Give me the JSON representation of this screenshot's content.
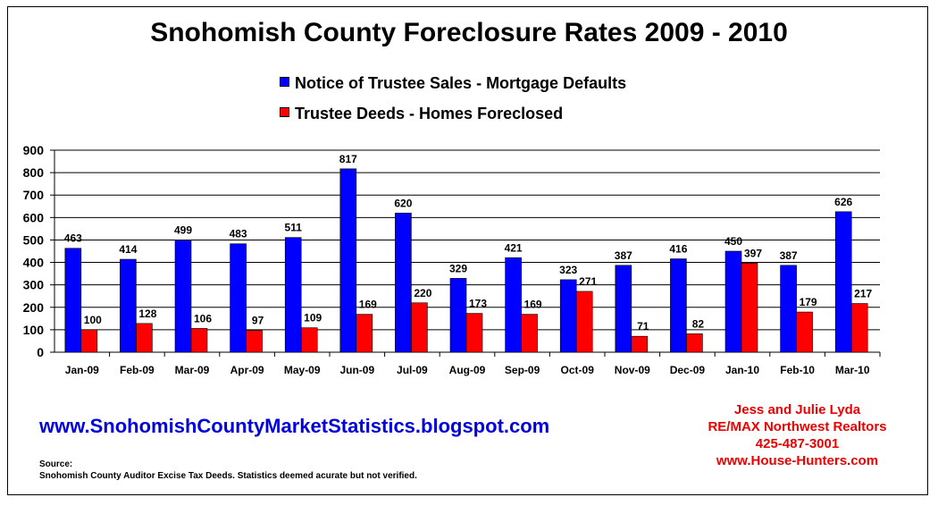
{
  "title": "Snohomish County Foreclosure Rates 2009 - 2010",
  "legend": [
    {
      "label": "Notice of Trustee Sales - Mortgage Defaults",
      "color": "#0000ff"
    },
    {
      "label": "Trustee Deeds - Homes Foreclosed",
      "color": "#ff0000"
    }
  ],
  "chart_data": {
    "type": "bar",
    "title": "Snohomish County Foreclosure Rates 2009 - 2010",
    "categories": [
      "Jan-09",
      "Feb-09",
      "Mar-09",
      "Apr-09",
      "May-09",
      "Jun-09",
      "Jul-09",
      "Aug-09",
      "Sep-09",
      "Oct-09",
      "Nov-09",
      "Dec-09",
      "Jan-10",
      "Feb-10",
      "Mar-10"
    ],
    "series": [
      {
        "name": "Notice of Trustee Sales - Mortgage Defaults",
        "color": "#0000ff",
        "values": [
          463,
          414,
          499,
          483,
          511,
          817,
          620,
          329,
          421,
          323,
          387,
          416,
          450,
          387,
          626
        ]
      },
      {
        "name": "Trustee Deeds - Homes Foreclosed",
        "color": "#ff0000",
        "values": [
          100,
          128,
          106,
          97,
          109,
          169,
          220,
          173,
          169,
          271,
          71,
          82,
          397,
          179,
          217
        ]
      }
    ],
    "ylim": [
      0,
      900
    ],
    "yticks": [
      0,
      100,
      200,
      300,
      400,
      500,
      600,
      700,
      800,
      900
    ],
    "grid": true,
    "legend_position": "top"
  },
  "footer": {
    "website": "www.SnohomishCountyMarketStatistics.blogspot.com",
    "source_label": "Source:",
    "source_text": "Snohomish County Auditor Excise Tax Deeds.   Statistics deemed acurate but not verified."
  },
  "contact": {
    "names": "Jess and Julie Lyda",
    "company": "RE/MAX Northwest Realtors",
    "phone": "425-487-3001",
    "site": "www.House-Hunters.com"
  }
}
